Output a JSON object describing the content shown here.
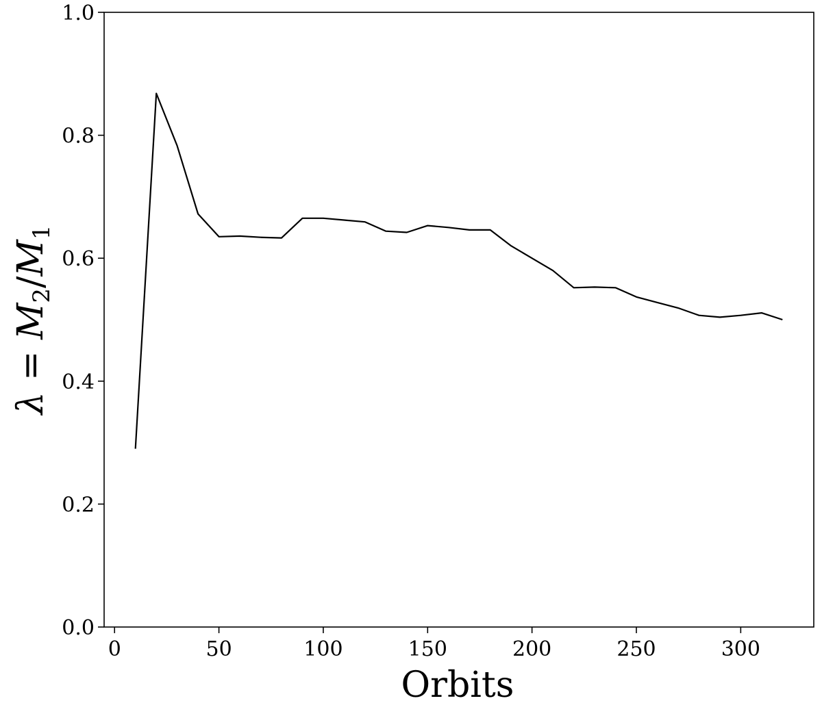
{
  "chart_data": {
    "type": "line",
    "xlabel": "Orbits",
    "ylabel_parts": {
      "lhs": "λ = ",
      "num": "M",
      "num_sub": "2",
      "slash": "/",
      "den": "M",
      "den_sub": "1"
    },
    "xlim": [
      -5,
      335
    ],
    "ylim": [
      0.0,
      1.0
    ],
    "xticks": [
      0,
      50,
      100,
      150,
      200,
      250,
      300
    ],
    "xtick_labels": [
      "0",
      "50",
      "100",
      "150",
      "200",
      "250",
      "300"
    ],
    "yticks": [
      0.0,
      0.2,
      0.4,
      0.6,
      0.8,
      1.0
    ],
    "ytick_labels": [
      "0.0",
      "0.2",
      "0.4",
      "0.6",
      "0.8",
      "1.0"
    ],
    "grid": false,
    "series": [
      {
        "color": "#000000",
        "x": [
          10,
          20,
          30,
          40,
          50,
          60,
          70,
          80,
          90,
          100,
          110,
          120,
          130,
          140,
          150,
          160,
          170,
          180,
          190,
          200,
          210,
          220,
          230,
          240,
          250,
          260,
          270,
          280,
          290,
          300,
          310,
          320
        ],
        "y": [
          0.29,
          0.868,
          0.783,
          0.672,
          0.635,
          0.636,
          0.634,
          0.633,
          0.665,
          0.665,
          0.662,
          0.659,
          0.644,
          0.642,
          0.653,
          0.65,
          0.646,
          0.646,
          0.62,
          0.6,
          0.58,
          0.552,
          0.553,
          0.552,
          0.537,
          0.528,
          0.519,
          0.507,
          0.504,
          0.507,
          0.511,
          0.5
        ]
      }
    ]
  }
}
